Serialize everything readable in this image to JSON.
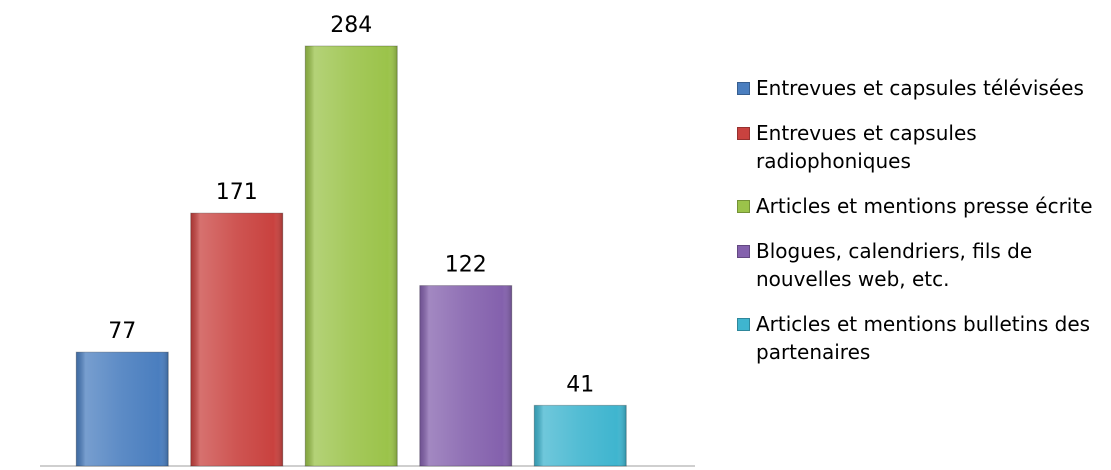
{
  "chart_data": {
    "type": "bar",
    "categories": [
      "Entrevues et capsules télévisées",
      "Entrevues et capsules radiophoniques",
      "Articles et mentions presse écrite",
      "Blogues, calendriers, fils de nouvelles web, etc.",
      "Articles et mentions bulletins des partenaires"
    ],
    "values": [
      77,
      171,
      284,
      122,
      41
    ],
    "colors": [
      "#4a7ebf",
      "#c9423f",
      "#9bc34a",
      "#8461ad",
      "#3fb5cf"
    ],
    "legend": "right"
  }
}
